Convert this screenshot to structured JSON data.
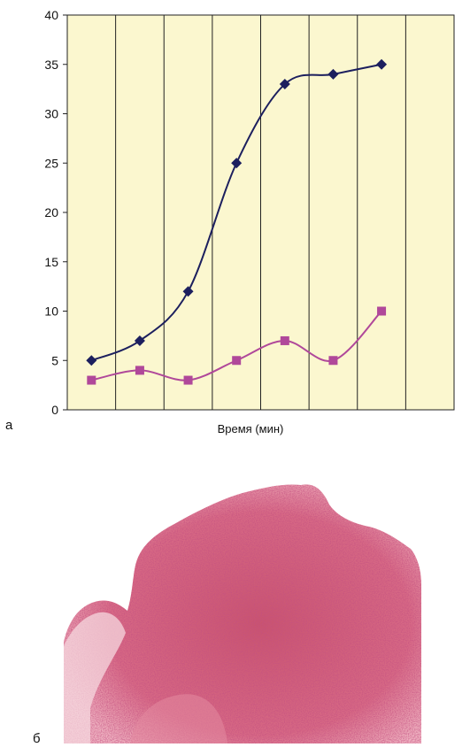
{
  "panel_labels": {
    "a": "а",
    "b": "б"
  },
  "colors": {
    "plot_background": "#fbf7cf",
    "series_1": "#1c1f5e",
    "series_2": "#b0489a",
    "grid": "#222222"
  },
  "chart_data": {
    "type": "line",
    "xlabel": "Время (мин)",
    "ylabel": "",
    "ylim": [
      0,
      40
    ],
    "yticks": [
      0,
      5,
      10,
      15,
      20,
      25,
      30,
      35,
      40
    ],
    "x": [
      1,
      2,
      3,
      4,
      5,
      6,
      7
    ],
    "x_slots": 8,
    "grid": "vertical lines only",
    "legend": "none",
    "series": [
      {
        "marker": "diamond",
        "color": "#1c1f5e",
        "values": [
          5,
          7,
          12,
          25,
          33,
          34,
          35
        ]
      },
      {
        "marker": "square",
        "color": "#b0489a",
        "values": [
          3,
          4,
          3,
          5,
          7,
          5,
          10
        ]
      }
    ]
  },
  "image": {
    "description_icon": "histology-micrograph-icon"
  }
}
